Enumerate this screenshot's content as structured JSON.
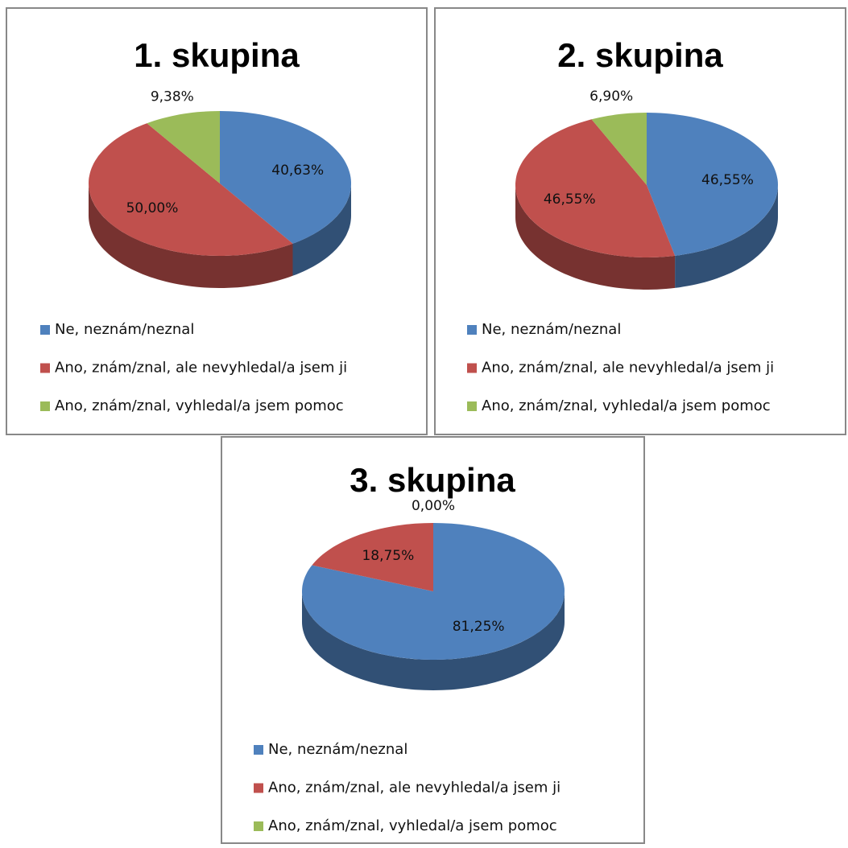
{
  "chart_data": [
    {
      "type": "pie",
      "title": "1. skupina",
      "categories": [
        "Ne, neznám/neznal",
        "Ano, znám/znal, ale nevyhledal/a jsem ji",
        "Ano, znám/znal, vyhledal/a jsem pomoc"
      ],
      "values": [
        40.63,
        50.0,
        9.38
      ],
      "value_labels": [
        "40,63%",
        "50,00%",
        "9,38%"
      ],
      "colors": [
        "#4f81bd",
        "#c0504d",
        "#9bbb59"
      ]
    },
    {
      "type": "pie",
      "title": "2. skupina",
      "categories": [
        "Ne, neznám/neznal",
        "Ano, znám/znal, ale nevyhledal/a jsem ji",
        "Ano, znám/znal, vyhledal/a jsem pomoc"
      ],
      "values": [
        46.55,
        46.55,
        6.9
      ],
      "value_labels": [
        "46,55%",
        "46,55%",
        "6,90%"
      ],
      "colors": [
        "#4f81bd",
        "#c0504d",
        "#9bbb59"
      ]
    },
    {
      "type": "pie",
      "title": "3. skupina",
      "categories": [
        "Ne, neznám/neznal",
        "Ano, znám/znal, ale nevyhledal/a jsem ji",
        "Ano, znám/znal, vyhledal/a jsem pomoc"
      ],
      "values": [
        81.25,
        18.75,
        0.0
      ],
      "value_labels": [
        "81,25%",
        "18,75%",
        "0,00%"
      ],
      "colors": [
        "#4f81bd",
        "#c0504d",
        "#9bbb59"
      ]
    }
  ]
}
